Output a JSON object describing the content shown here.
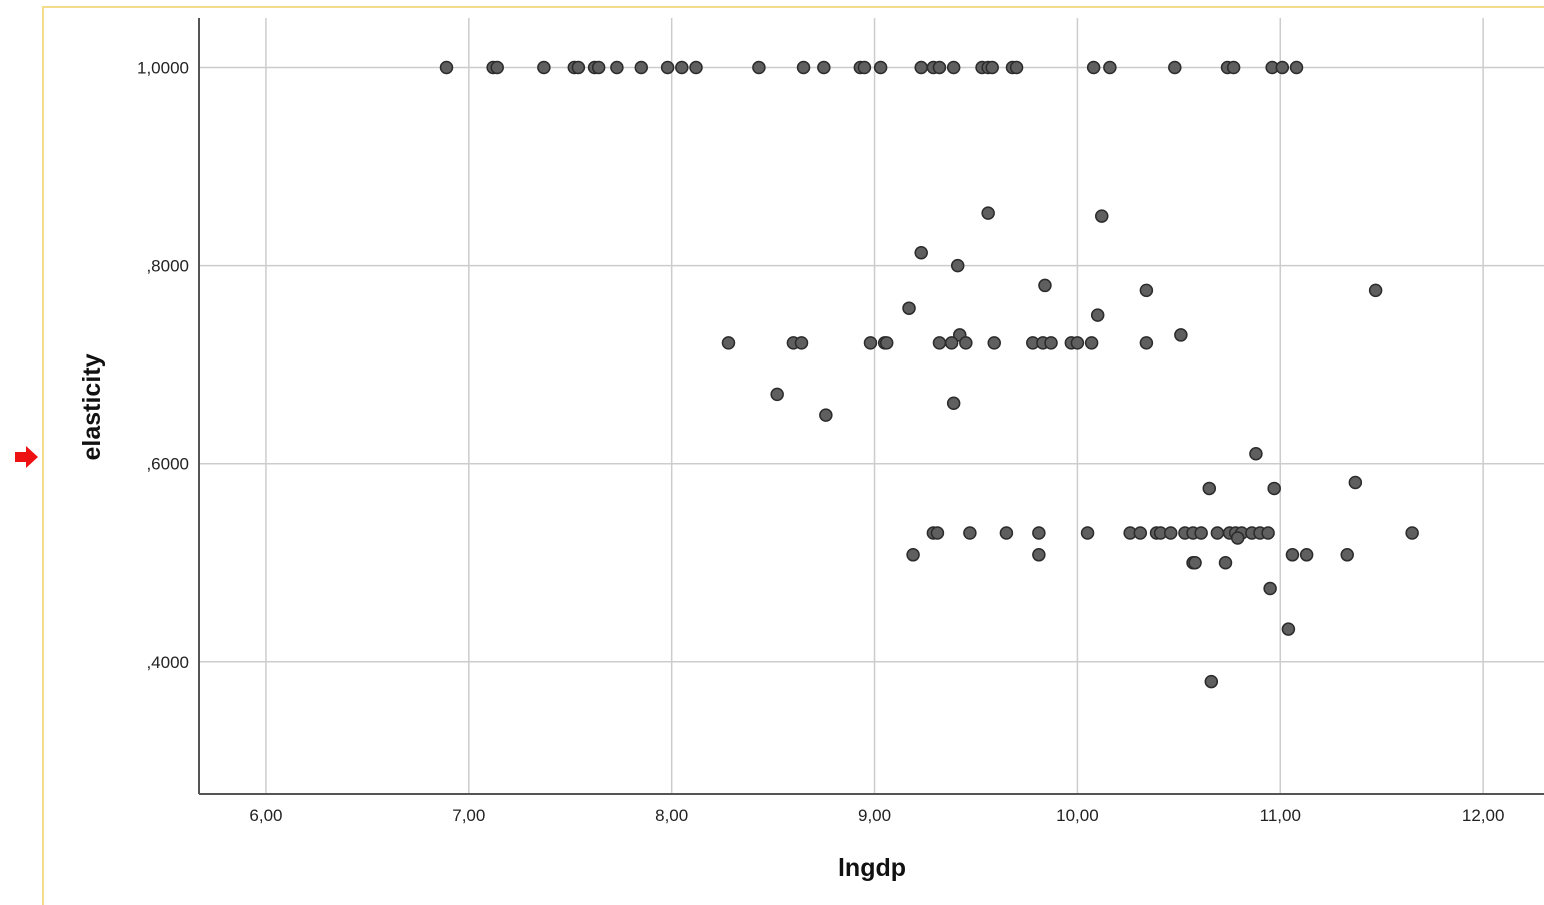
{
  "colors": {
    "frame_border": "#f5dc8a",
    "marker_arrow": "#ee1111",
    "point_fill": "#5f5f5f",
    "point_stroke": "#2b2b2b",
    "grid": "#cccccc",
    "axis": "#555555"
  },
  "icons": {
    "selection_marker": "arrow-right-icon"
  },
  "chart_data": {
    "type": "scatter",
    "xlabel": "lngdp",
    "ylabel": "elasticity",
    "xlim": [
      5.67,
      12.3
    ],
    "ylim": [
      0.2665,
      1.05
    ],
    "grid": true,
    "xticks": [
      6,
      7,
      8,
      9,
      10,
      11,
      12
    ],
    "xtick_labels": [
      "6,00",
      "7,00",
      "8,00",
      "9,00",
      "10,00",
      "11,00",
      "12,00"
    ],
    "yticks": [
      0.4,
      0.6,
      0.8,
      1.0
    ],
    "ytick_labels": [
      ",4000",
      ",6000",
      ",8000",
      "1,0000"
    ],
    "points": [
      [
        6.89,
        1.0
      ],
      [
        7.12,
        1.0
      ],
      [
        7.14,
        1.0
      ],
      [
        7.37,
        1.0
      ],
      [
        7.52,
        1.0
      ],
      [
        7.54,
        1.0
      ],
      [
        7.62,
        1.0
      ],
      [
        7.64,
        1.0
      ],
      [
        7.73,
        1.0
      ],
      [
        7.85,
        1.0
      ],
      [
        7.98,
        1.0
      ],
      [
        8.05,
        1.0
      ],
      [
        8.12,
        1.0
      ],
      [
        8.43,
        1.0
      ],
      [
        8.65,
        1.0
      ],
      [
        8.75,
        1.0
      ],
      [
        8.93,
        1.0
      ],
      [
        8.95,
        1.0
      ],
      [
        9.03,
        1.0
      ],
      [
        9.23,
        1.0
      ],
      [
        9.29,
        1.0
      ],
      [
        9.32,
        1.0
      ],
      [
        9.39,
        1.0
      ],
      [
        9.53,
        1.0
      ],
      [
        9.56,
        1.0
      ],
      [
        9.58,
        1.0
      ],
      [
        9.68,
        1.0
      ],
      [
        9.7,
        1.0
      ],
      [
        10.08,
        1.0
      ],
      [
        10.16,
        1.0
      ],
      [
        10.48,
        1.0
      ],
      [
        10.74,
        1.0
      ],
      [
        10.77,
        1.0
      ],
      [
        10.96,
        1.0
      ],
      [
        11.01,
        1.0
      ],
      [
        11.08,
        1.0
      ],
      [
        9.56,
        0.853
      ],
      [
        10.12,
        0.85
      ],
      [
        9.23,
        0.813
      ],
      [
        9.41,
        0.8
      ],
      [
        9.84,
        0.78
      ],
      [
        10.34,
        0.775
      ],
      [
        11.47,
        0.775
      ],
      [
        9.17,
        0.757
      ],
      [
        10.1,
        0.75
      ],
      [
        9.42,
        0.73
      ],
      [
        10.51,
        0.73
      ],
      [
        8.28,
        0.722
      ],
      [
        8.6,
        0.722
      ],
      [
        8.64,
        0.722
      ],
      [
        8.98,
        0.722
      ],
      [
        9.05,
        0.722
      ],
      [
        9.06,
        0.722
      ],
      [
        9.32,
        0.722
      ],
      [
        9.38,
        0.722
      ],
      [
        9.45,
        0.722
      ],
      [
        9.59,
        0.722
      ],
      [
        9.78,
        0.722
      ],
      [
        9.83,
        0.722
      ],
      [
        9.87,
        0.722
      ],
      [
        9.97,
        0.722
      ],
      [
        10.0,
        0.722
      ],
      [
        10.07,
        0.722
      ],
      [
        10.34,
        0.722
      ],
      [
        8.52,
        0.67
      ],
      [
        9.39,
        0.661
      ],
      [
        8.76,
        0.649
      ],
      [
        10.88,
        0.61
      ],
      [
        11.37,
        0.581
      ],
      [
        10.65,
        0.575
      ],
      [
        10.97,
        0.575
      ],
      [
        9.29,
        0.53
      ],
      [
        9.31,
        0.53
      ],
      [
        9.47,
        0.53
      ],
      [
        9.65,
        0.53
      ],
      [
        9.81,
        0.53
      ],
      [
        10.05,
        0.53
      ],
      [
        10.26,
        0.53
      ],
      [
        10.31,
        0.53
      ],
      [
        10.39,
        0.53
      ],
      [
        10.41,
        0.53
      ],
      [
        10.46,
        0.53
      ],
      [
        10.53,
        0.53
      ],
      [
        10.57,
        0.53
      ],
      [
        10.61,
        0.53
      ],
      [
        10.69,
        0.53
      ],
      [
        10.75,
        0.53
      ],
      [
        10.78,
        0.53
      ],
      [
        10.81,
        0.53
      ],
      [
        10.86,
        0.53
      ],
      [
        10.9,
        0.53
      ],
      [
        10.94,
        0.53
      ],
      [
        11.65,
        0.53
      ],
      [
        10.79,
        0.525
      ],
      [
        9.19,
        0.508
      ],
      [
        9.81,
        0.508
      ],
      [
        11.06,
        0.508
      ],
      [
        11.13,
        0.508
      ],
      [
        11.33,
        0.508
      ],
      [
        10.57,
        0.5
      ],
      [
        10.58,
        0.5
      ],
      [
        10.73,
        0.5
      ],
      [
        10.95,
        0.474
      ],
      [
        11.04,
        0.433
      ],
      [
        10.66,
        0.38
      ]
    ]
  }
}
